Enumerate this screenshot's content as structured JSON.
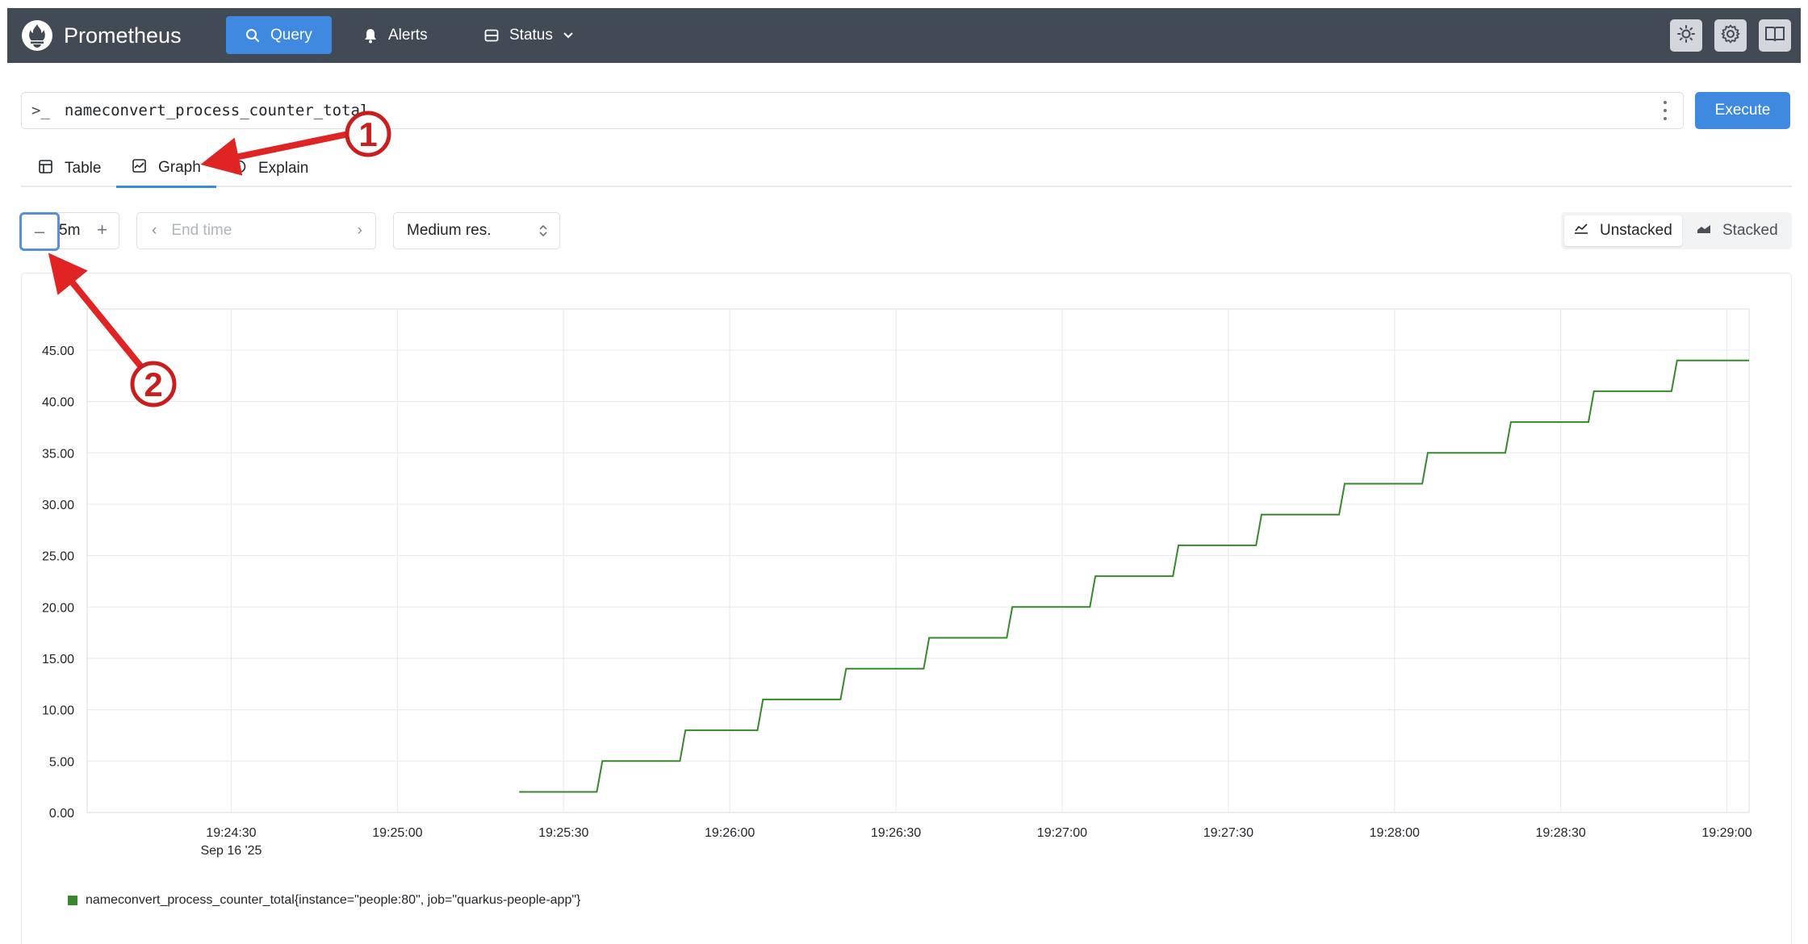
{
  "navbar": {
    "brand": "Prometheus",
    "items": [
      {
        "label": "Query",
        "icon": "search-icon",
        "active": true
      },
      {
        "label": "Alerts",
        "icon": "bell-icon"
      },
      {
        "label": "Status",
        "icon": "server-icon",
        "has_dropdown": true
      }
    ],
    "tools": [
      "sun-icon",
      "gear-icon",
      "book-icon"
    ],
    "colors": {
      "bar": "#424a55",
      "active": "#3f8ae0"
    }
  },
  "query": {
    "prompt": ">_",
    "expression": "nameconvert_process_counter_total",
    "execute_label": "Execute"
  },
  "tabs": [
    {
      "label": "Table",
      "icon": "table-icon"
    },
    {
      "label": "Graph",
      "icon": "graph-icon",
      "active": true
    },
    {
      "label": "Explain",
      "icon": "explain-icon"
    }
  ],
  "controls": {
    "range_value": "5m",
    "end_time_placeholder": "End time",
    "resolution": "Medium res.",
    "unstacked_label": "Unstacked",
    "stacked_label": "Stacked",
    "stack_mode": "unstacked"
  },
  "chart_data": {
    "type": "line",
    "line_style": "step",
    "x_ticks": [
      "19:24:30",
      "19:25:00",
      "19:25:30",
      "19:26:00",
      "19:26:30",
      "19:27:00",
      "19:27:30",
      "19:28:00",
      "19:28:30",
      "19:29:00"
    ],
    "x_date_label": "Sep 16 '25",
    "x_range": [
      "19:24:04",
      "19:29:04"
    ],
    "y_ticks": [
      "0.00",
      "5.00",
      "10.00",
      "15.00",
      "20.00",
      "25.00",
      "30.00",
      "35.00",
      "40.00",
      "45.00"
    ],
    "ylim": [
      0,
      49
    ],
    "grid": true,
    "series": [
      {
        "name": "nameconvert_process_counter_total{instance=\"people:80\", job=\"quarkus-people-app\"}",
        "color": "#37872d",
        "points": [
          [
            "19:25:22",
            2
          ],
          [
            "19:25:36",
            2
          ],
          [
            "19:25:37",
            5
          ],
          [
            "19:25:51",
            5
          ],
          [
            "19:25:52",
            8
          ],
          [
            "19:26:05",
            8
          ],
          [
            "19:26:06",
            11
          ],
          [
            "19:26:20",
            11
          ],
          [
            "19:26:21",
            14
          ],
          [
            "19:26:35",
            14
          ],
          [
            "19:26:36",
            17
          ],
          [
            "19:26:50",
            17
          ],
          [
            "19:26:51",
            20
          ],
          [
            "19:27:05",
            20
          ],
          [
            "19:27:06",
            23
          ],
          [
            "19:27:20",
            23
          ],
          [
            "19:27:21",
            26
          ],
          [
            "19:27:35",
            26
          ],
          [
            "19:27:36",
            29
          ],
          [
            "19:27:50",
            29
          ],
          [
            "19:27:51",
            32
          ],
          [
            "19:28:05",
            32
          ],
          [
            "19:28:06",
            35
          ],
          [
            "19:28:20",
            35
          ],
          [
            "19:28:21",
            38
          ],
          [
            "19:28:35",
            38
          ],
          [
            "19:28:36",
            41
          ],
          [
            "19:28:50",
            41
          ],
          [
            "19:28:51",
            44
          ],
          [
            "19:29:04",
            44
          ]
        ]
      }
    ],
    "legend_position": "bottom-left"
  },
  "annotations": [
    {
      "label": "1",
      "color": "#c81e1e"
    },
    {
      "label": "2",
      "color": "#c81e1e"
    }
  ]
}
